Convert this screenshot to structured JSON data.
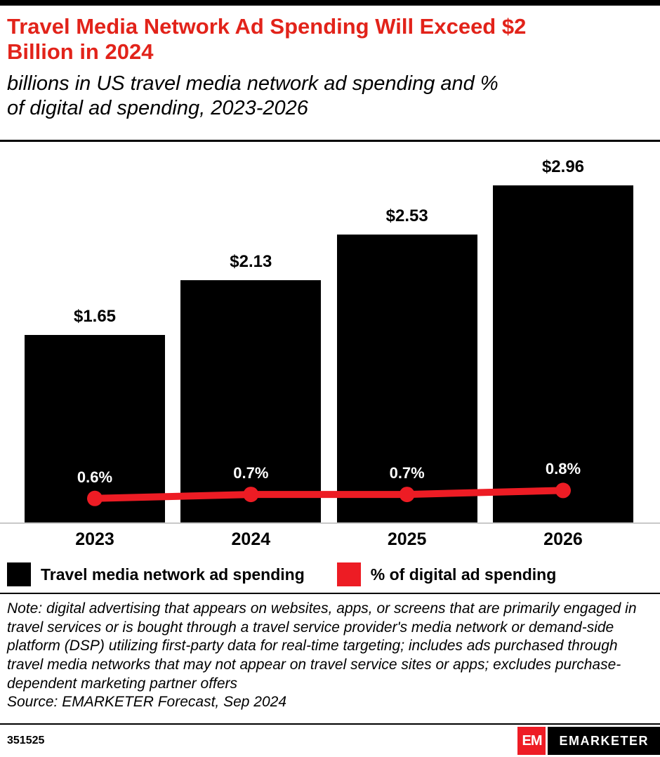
{
  "header": {
    "title": "Travel Media Network Ad Spending Will Exceed $2\nBillion in 2024",
    "subtitle": "billions in US travel media network ad spending and %\nof digital ad spending, 2023-2026"
  },
  "chart_data": {
    "type": "bar",
    "categories": [
      "2023",
      "2024",
      "2025",
      "2026"
    ],
    "series": [
      {
        "name": "Travel media network ad spending",
        "type": "bar",
        "values": [
          1.65,
          2.13,
          2.53,
          2.96
        ],
        "labels": [
          "$1.65",
          "$2.13",
          "$2.53",
          "$2.96"
        ],
        "color": "#000000"
      },
      {
        "name": "% of digital ad spending",
        "type": "line",
        "values": [
          0.6,
          0.7,
          0.7,
          0.8
        ],
        "labels": [
          "0.6%",
          "0.7%",
          "0.7%",
          "0.8%"
        ],
        "color": "#ed1c24"
      }
    ],
    "title": "Travel Media Network Ad Spending Will Exceed $2 Billion in 2024",
    "xlabel": "",
    "ylabel": "",
    "ylim": [
      0,
      3.36
    ],
    "y2lim": [
      0,
      9.5
    ],
    "grid": false,
    "legend_position": "bottom"
  },
  "legend": {
    "items": [
      {
        "label": "Travel media network ad spending",
        "color": "#000000"
      },
      {
        "label": "% of digital ad spending",
        "color": "#ed1c24"
      }
    ]
  },
  "note": {
    "note_text": "Note: digital advertising that appears on websites, apps, or screens that are primarily engaged in travel services or is bought through a travel service provider's media network or demand-side platform (DSP) utilizing first-party data for real-time targeting; includes ads purchased through travel media networks that may not appear on travel service sites or apps; excludes purchase-dependent marketing partner offers",
    "source_text": "Source: EMARKETER Forecast, Sep 2024"
  },
  "footer": {
    "chart_id": "351525",
    "logo_monogram": "EM",
    "brand": "EMARKETER"
  },
  "colors": {
    "brand_red": "#ee1c25",
    "title_red": "#e2231a",
    "bar_black": "#000000",
    "axis_gray": "#c9c9c9"
  }
}
